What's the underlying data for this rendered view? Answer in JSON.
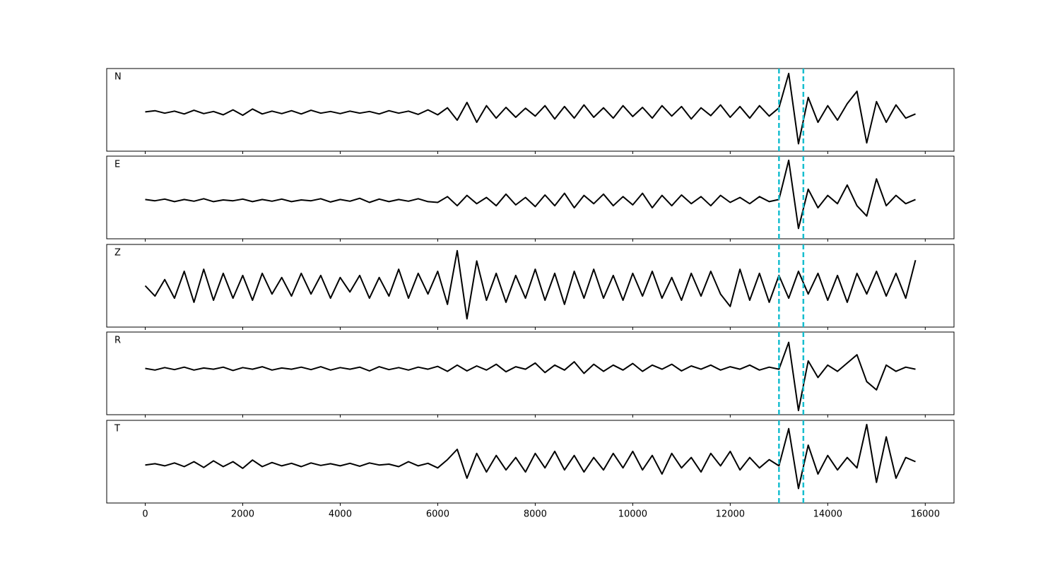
{
  "chart_data": {
    "type": "line",
    "xlim": [
      -790,
      16590
    ],
    "xticks": [
      0,
      2000,
      4000,
      6000,
      8000,
      10000,
      12000,
      14000,
      16000
    ],
    "vlines": [
      13000,
      13500
    ],
    "vline_color": "#17becf",
    "line_color": "#000000",
    "x": [
      0,
      200,
      400,
      600,
      800,
      1000,
      1200,
      1400,
      1600,
      1800,
      2000,
      2200,
      2400,
      2600,
      2800,
      3000,
      3200,
      3400,
      3600,
      3800,
      4000,
      4200,
      4400,
      4600,
      4800,
      5000,
      5200,
      5400,
      5600,
      5800,
      6000,
      6200,
      6400,
      6600,
      6800,
      7000,
      7200,
      7400,
      7600,
      7800,
      8000,
      8200,
      8400,
      8600,
      8800,
      9000,
      9200,
      9400,
      9600,
      9800,
      10000,
      10200,
      10400,
      10600,
      10800,
      11000,
      11200,
      11400,
      11600,
      11800,
      12000,
      12200,
      12400,
      12600,
      12800,
      13000,
      13200,
      13400,
      13600,
      13800,
      14000,
      14200,
      14400,
      14600,
      14800,
      15000,
      15200,
      15400,
      15600,
      15800
    ],
    "panels": [
      {
        "label": "N",
        "ylim": [
          -1,
          1
        ],
        "values": [
          -0.05,
          -0.02,
          -0.08,
          -0.03,
          -0.1,
          -0.01,
          -0.09,
          -0.04,
          -0.12,
          0.0,
          -0.13,
          0.02,
          -0.1,
          -0.03,
          -0.09,
          -0.02,
          -0.1,
          -0.01,
          -0.08,
          -0.04,
          -0.09,
          -0.03,
          -0.08,
          -0.04,
          -0.1,
          -0.02,
          -0.08,
          -0.03,
          -0.11,
          0.0,
          -0.12,
          0.05,
          -0.25,
          0.18,
          -0.3,
          0.1,
          -0.2,
          0.06,
          -0.18,
          0.04,
          -0.15,
          0.1,
          -0.22,
          0.08,
          -0.2,
          0.12,
          -0.18,
          0.05,
          -0.2,
          0.1,
          -0.16,
          0.06,
          -0.2,
          0.1,
          -0.15,
          0.08,
          -0.22,
          0.05,
          -0.14,
          0.12,
          -0.18,
          0.08,
          -0.2,
          0.1,
          -0.15,
          0.05,
          0.88,
          -0.82,
          0.3,
          -0.3,
          0.1,
          -0.25,
          0.15,
          0.45,
          -0.8,
          0.2,
          -0.3,
          0.12,
          -0.2,
          -0.1
        ]
      },
      {
        "label": "E",
        "ylim": [
          -1,
          1
        ],
        "values": [
          -0.05,
          -0.08,
          -0.04,
          -0.1,
          -0.05,
          -0.09,
          -0.03,
          -0.1,
          -0.06,
          -0.08,
          -0.04,
          -0.1,
          -0.05,
          -0.09,
          -0.04,
          -0.1,
          -0.06,
          -0.08,
          -0.03,
          -0.11,
          -0.05,
          -0.09,
          -0.02,
          -0.12,
          -0.04,
          -0.1,
          -0.05,
          -0.09,
          -0.03,
          -0.1,
          -0.12,
          0.02,
          -0.2,
          0.05,
          -0.15,
          0.0,
          -0.2,
          0.08,
          -0.18,
          0.0,
          -0.22,
          0.06,
          -0.2,
          0.1,
          -0.25,
          0.05,
          -0.15,
          0.08,
          -0.2,
          0.02,
          -0.18,
          0.1,
          -0.25,
          0.05,
          -0.2,
          0.06,
          -0.15,
          0.02,
          -0.2,
          0.05,
          -0.12,
          0.0,
          -0.15,
          0.02,
          -0.1,
          -0.05,
          0.9,
          -0.75,
          0.2,
          -0.25,
          0.05,
          -0.15,
          0.3,
          -0.2,
          -0.45,
          0.45,
          -0.2,
          0.05,
          -0.15,
          -0.05
        ]
      },
      {
        "label": "Z",
        "ylim": [
          -1,
          1
        ],
        "values": [
          0.0,
          -0.25,
          0.15,
          -0.3,
          0.35,
          -0.4,
          0.4,
          -0.35,
          0.3,
          -0.3,
          0.25,
          -0.35,
          0.3,
          -0.2,
          0.2,
          -0.25,
          0.3,
          -0.2,
          0.25,
          -0.3,
          0.2,
          -0.15,
          0.25,
          -0.3,
          0.2,
          -0.25,
          0.4,
          -0.3,
          0.3,
          -0.2,
          0.35,
          -0.45,
          0.85,
          -0.8,
          0.6,
          -0.35,
          0.3,
          -0.4,
          0.25,
          -0.3,
          0.4,
          -0.35,
          0.3,
          -0.45,
          0.35,
          -0.3,
          0.4,
          -0.3,
          0.25,
          -0.35,
          0.3,
          -0.25,
          0.35,
          -0.3,
          0.2,
          -0.35,
          0.3,
          -0.25,
          0.35,
          -0.2,
          -0.5,
          0.4,
          -0.35,
          0.3,
          -0.4,
          0.25,
          -0.3,
          0.35,
          -0.2,
          0.3,
          -0.35,
          0.25,
          -0.4,
          0.3,
          -0.2,
          0.35,
          -0.25,
          0.3,
          -0.3,
          0.62
        ]
      },
      {
        "label": "R",
        "ylim": [
          -1,
          1
        ],
        "values": [
          0.12,
          0.08,
          0.14,
          0.09,
          0.15,
          0.08,
          0.13,
          0.1,
          0.15,
          0.07,
          0.14,
          0.1,
          0.16,
          0.08,
          0.13,
          0.1,
          0.15,
          0.09,
          0.16,
          0.08,
          0.14,
          0.1,
          0.15,
          0.06,
          0.16,
          0.09,
          0.14,
          0.08,
          0.15,
          0.1,
          0.17,
          0.05,
          0.2,
          0.06,
          0.18,
          0.08,
          0.22,
          0.04,
          0.16,
          0.1,
          0.25,
          0.02,
          0.2,
          0.08,
          0.28,
          0.0,
          0.22,
          0.05,
          0.2,
          0.08,
          0.24,
          0.05,
          0.2,
          0.1,
          0.22,
          0.06,
          0.18,
          0.1,
          0.2,
          0.08,
          0.16,
          0.1,
          0.2,
          0.08,
          0.15,
          0.1,
          0.75,
          -0.9,
          0.3,
          -0.1,
          0.2,
          0.05,
          0.25,
          0.45,
          -0.2,
          -0.4,
          0.2,
          0.05,
          0.15,
          0.1
        ]
      },
      {
        "label": "T",
        "ylim": [
          -1,
          1
        ],
        "values": [
          -0.08,
          -0.05,
          -0.1,
          -0.03,
          -0.12,
          0.0,
          -0.14,
          0.02,
          -0.12,
          0.0,
          -0.16,
          0.04,
          -0.12,
          -0.02,
          -0.1,
          -0.04,
          -0.12,
          -0.03,
          -0.09,
          -0.05,
          -0.1,
          -0.04,
          -0.11,
          -0.03,
          -0.08,
          -0.06,
          -0.12,
          0.0,
          -0.1,
          -0.04,
          -0.15,
          0.05,
          0.3,
          -0.4,
          0.2,
          -0.25,
          0.15,
          -0.2,
          0.1,
          -0.25,
          0.2,
          -0.15,
          0.25,
          -0.2,
          0.15,
          -0.25,
          0.1,
          -0.2,
          0.2,
          -0.15,
          0.25,
          -0.2,
          0.15,
          -0.3,
          0.2,
          -0.15,
          0.1,
          -0.25,
          0.2,
          -0.1,
          0.25,
          -0.2,
          0.1,
          -0.15,
          0.05,
          -0.1,
          0.8,
          -0.65,
          0.4,
          -0.3,
          0.15,
          -0.2,
          0.1,
          -0.15,
          0.9,
          -0.5,
          0.6,
          -0.4,
          0.1,
          0.0
        ]
      }
    ]
  }
}
